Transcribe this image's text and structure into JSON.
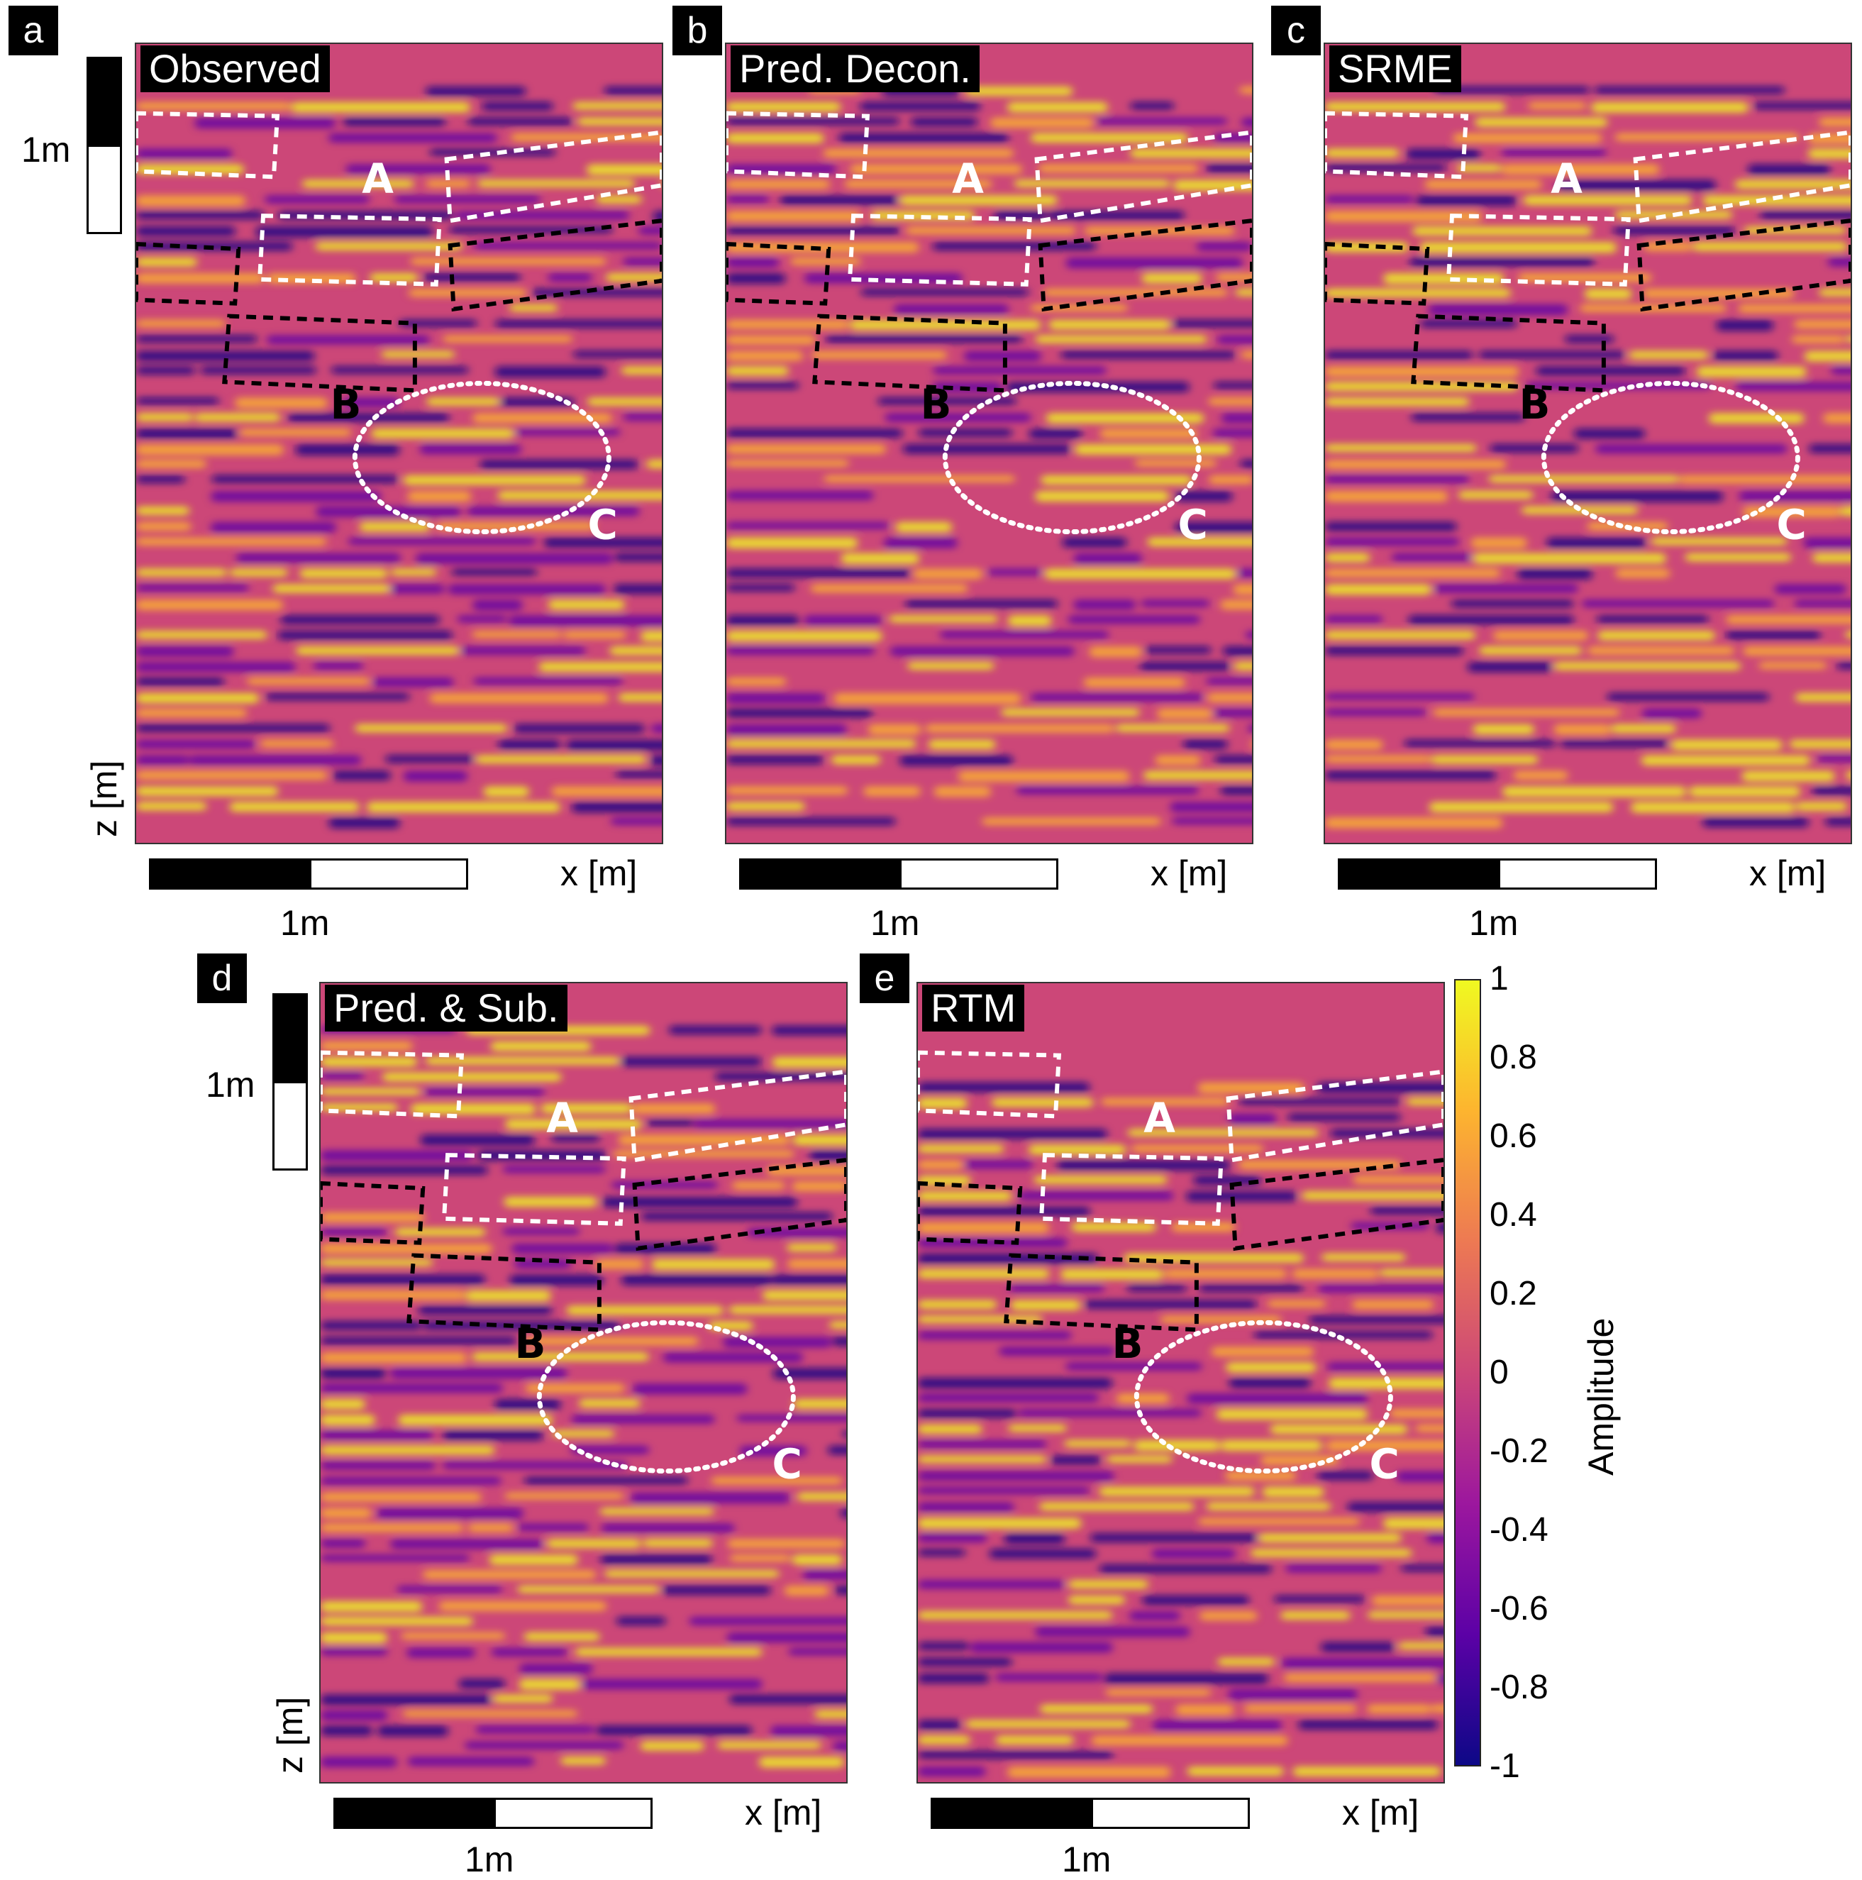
{
  "panels": [
    {
      "letter": "a",
      "title": "Observed",
      "scale_v": "1m",
      "zlabel": "z [m]",
      "xlabel": "x [m]",
      "scale_h": "1m",
      "labels": [
        "A",
        "B",
        "C"
      ]
    },
    {
      "letter": "b",
      "title": "Pred. Decon.",
      "xlabel": "x [m]",
      "scale_h": "1m",
      "labels": [
        "A",
        "B",
        "C"
      ]
    },
    {
      "letter": "c",
      "title": "SRME",
      "xlabel": "x [m]",
      "scale_h": "1m",
      "labels": [
        "A",
        "B",
        "C"
      ]
    },
    {
      "letter": "d",
      "title": "Pred. & Sub.",
      "scale_v": "1m",
      "zlabel": "z [m]",
      "xlabel": "x [m]",
      "scale_h": "1m",
      "labels": [
        "A",
        "B",
        "C"
      ]
    },
    {
      "letter": "e",
      "title": "RTM",
      "xlabel": "x [m]",
      "scale_h": "1m",
      "labels": [
        "A",
        "B",
        "C"
      ]
    }
  ],
  "colorbar": {
    "label": "Amplitude",
    "ticks": [
      "1",
      "0.8",
      "0.6",
      "0.4",
      "0.2",
      "0",
      "-0.2",
      "-0.4",
      "-0.6",
      "-0.8",
      "-1"
    ],
    "colors": [
      "#f0f921",
      "#fdb42f",
      "#ed7953",
      "#cc4778",
      "#9c179e",
      "#5c01a6",
      "#0d0887"
    ]
  }
}
